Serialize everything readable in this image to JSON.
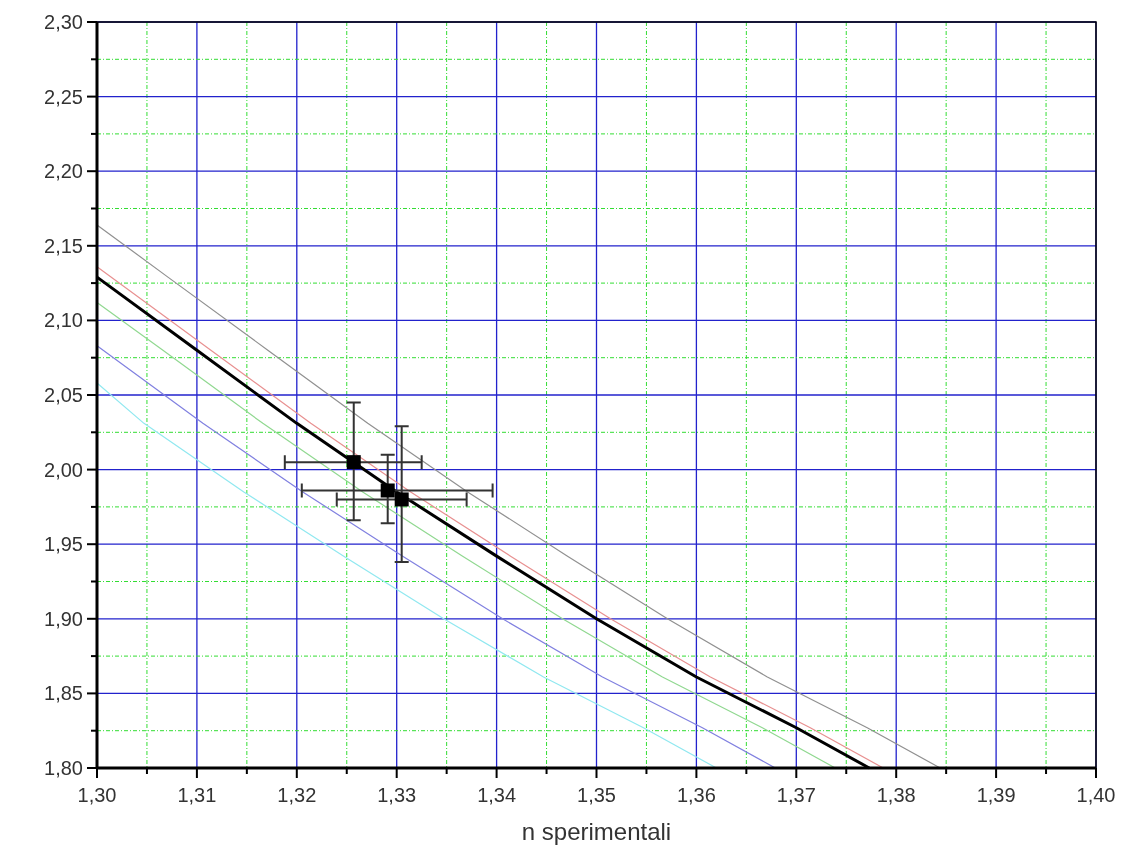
{
  "chart_data": {
    "type": "line",
    "xlabel": "n sperimentali",
    "xlim": [
      1.3,
      1.4
    ],
    "ylim": [
      1.8,
      2.3
    ],
    "xticks": [
      {
        "value": 1.3,
        "label": "1,30"
      },
      {
        "value": 1.305,
        "label": null
      },
      {
        "value": 1.31,
        "label": "1,31"
      },
      {
        "value": 1.315,
        "label": null
      },
      {
        "value": 1.32,
        "label": "1,32"
      },
      {
        "value": 1.325,
        "label": null
      },
      {
        "value": 1.33,
        "label": "1,33"
      },
      {
        "value": 1.335,
        "label": null
      },
      {
        "value": 1.34,
        "label": "1,34"
      },
      {
        "value": 1.345,
        "label": null
      },
      {
        "value": 1.35,
        "label": "1,35"
      },
      {
        "value": 1.355,
        "label": null
      },
      {
        "value": 1.36,
        "label": "1,36"
      },
      {
        "value": 1.365,
        "label": null
      },
      {
        "value": 1.37,
        "label": "1,37"
      },
      {
        "value": 1.375,
        "label": null
      },
      {
        "value": 1.38,
        "label": "1,38"
      },
      {
        "value": 1.385,
        "label": null
      },
      {
        "value": 1.39,
        "label": "1,39"
      },
      {
        "value": 1.395,
        "label": null
      },
      {
        "value": 1.4,
        "label": "1,40"
      }
    ],
    "yticks": [
      {
        "value": 1.8,
        "label": "1,80"
      },
      {
        "value": 1.825,
        "label": null
      },
      {
        "value": 1.85,
        "label": "1,85"
      },
      {
        "value": 1.875,
        "label": null
      },
      {
        "value": 1.9,
        "label": "1,90"
      },
      {
        "value": 1.925,
        "label": null
      },
      {
        "value": 1.95,
        "label": "1,95"
      },
      {
        "value": 1.975,
        "label": null
      },
      {
        "value": 2.0,
        "label": "2,00"
      },
      {
        "value": 2.025,
        "label": null
      },
      {
        "value": 2.05,
        "label": "2,05"
      },
      {
        "value": 2.075,
        "label": null
      },
      {
        "value": 2.1,
        "label": "2,10"
      },
      {
        "value": 2.125,
        "label": null
      },
      {
        "value": 2.15,
        "label": "2,15"
      },
      {
        "value": 2.175,
        "label": null
      },
      {
        "value": 2.2,
        "label": "2,20"
      },
      {
        "value": 2.225,
        "label": null
      },
      {
        "value": 2.25,
        "label": "2,25"
      },
      {
        "value": 2.275,
        "label": null
      },
      {
        "value": 2.3,
        "label": "2,30"
      }
    ],
    "grid": true,
    "series": [
      {
        "color": "#909090",
        "x": [
          1.3,
          1.3071,
          1.3171,
          1.3271,
          1.3371,
          1.3471,
          1.3571,
          1.3671,
          1.3771,
          1.3844
        ],
        "values": [
          2.164,
          2.129,
          2.08,
          2.031,
          1.985,
          1.942,
          1.9,
          1.861,
          1.827,
          1.8
        ]
      },
      {
        "color": "#e89090",
        "x": [
          1.3,
          1.3114,
          1.3214,
          1.3314,
          1.3414,
          1.3514,
          1.3614,
          1.3714,
          1.3787
        ],
        "values": [
          2.136,
          2.08,
          2.031,
          1.985,
          1.942,
          1.9,
          1.861,
          1.827,
          1.8
        ]
      },
      {
        "color": "#90d890",
        "x": [
          1.3,
          1.3066,
          1.3166,
          1.3266,
          1.3366,
          1.3466,
          1.3566,
          1.3666,
          1.3739
        ],
        "values": [
          2.112,
          2.08,
          2.031,
          1.985,
          1.942,
          1.9,
          1.861,
          1.827,
          1.8
        ]
      },
      {
        "color": "#8080e0",
        "x": [
          1.3,
          1.3106,
          1.3206,
          1.3306,
          1.3406,
          1.3506,
          1.3606,
          1.3679
        ],
        "values": [
          2.083,
          2.031,
          1.985,
          1.942,
          1.9,
          1.861,
          1.827,
          1.8
        ]
      },
      {
        "color": "#90e8f0",
        "x": [
          1.3,
          1.3047,
          1.3147,
          1.3247,
          1.3347,
          1.3447,
          1.3547,
          1.362
        ],
        "values": [
          2.058,
          2.031,
          1.985,
          1.942,
          1.9,
          1.861,
          1.827,
          1.8
        ]
      },
      {
        "color": "#000000",
        "x": [
          1.3,
          1.31,
          1.32,
          1.33,
          1.34,
          1.35,
          1.36,
          1.37,
          1.3773
        ],
        "values": [
          2.129,
          2.08,
          2.031,
          1.985,
          1.942,
          1.9,
          1.861,
          1.827,
          1.8
        ]
      },
      {
        "type": "scatter",
        "color": "#000000",
        "marker": "square",
        "x": [
          1.3257,
          1.3291,
          1.3305
        ],
        "values": [
          2.005,
          1.986,
          1.98
        ],
        "errors": [
          [
            1.966,
            2.045
          ],
          [
            1.964,
            2.01
          ],
          [
            1.938,
            2.029
          ]
        ],
        "xerrors": [
          [
            1.3188,
            1.3325
          ],
          [
            1.3205,
            1.3396
          ],
          [
            1.324,
            1.337
          ]
        ]
      }
    ]
  }
}
